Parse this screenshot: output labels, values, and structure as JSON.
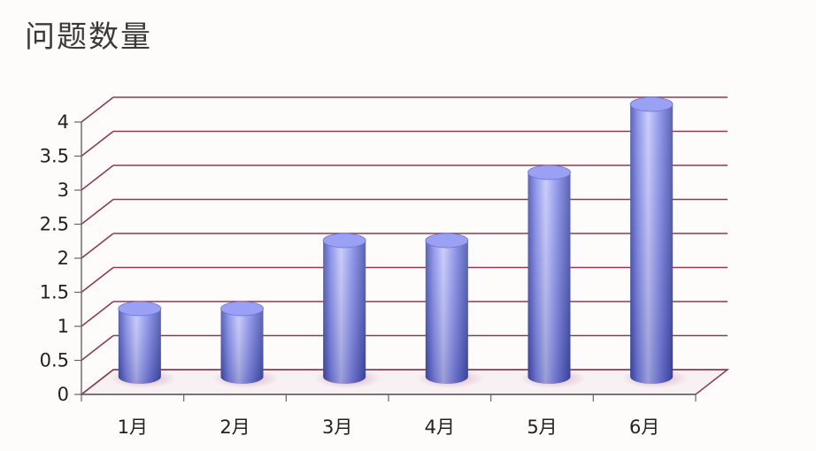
{
  "chart_data": {
    "type": "bar",
    "title": "问题数量",
    "categories": [
      "1月",
      "2月",
      "3月",
      "4月",
      "5月",
      "6月"
    ],
    "values": [
      1,
      1,
      2,
      2,
      3,
      4
    ],
    "ylim": [
      0,
      4
    ],
    "yticks": [
      "0",
      "0.5",
      "1",
      "1.5",
      "2",
      "2.5",
      "3",
      "3.5",
      "4"
    ],
    "xlabel": "",
    "ylabel": "",
    "grid": true,
    "bar_shape": "3d-cylinder",
    "colors": {
      "bar_light": "#c3c6fb",
      "bar_mid": "#7f86e6",
      "bar_dark": "#3f4aa6",
      "bar_top": "#9aa0f3",
      "bar_shadow": "#d9a9c6",
      "gridline": "#8b3b55",
      "axis": "#666666"
    }
  }
}
